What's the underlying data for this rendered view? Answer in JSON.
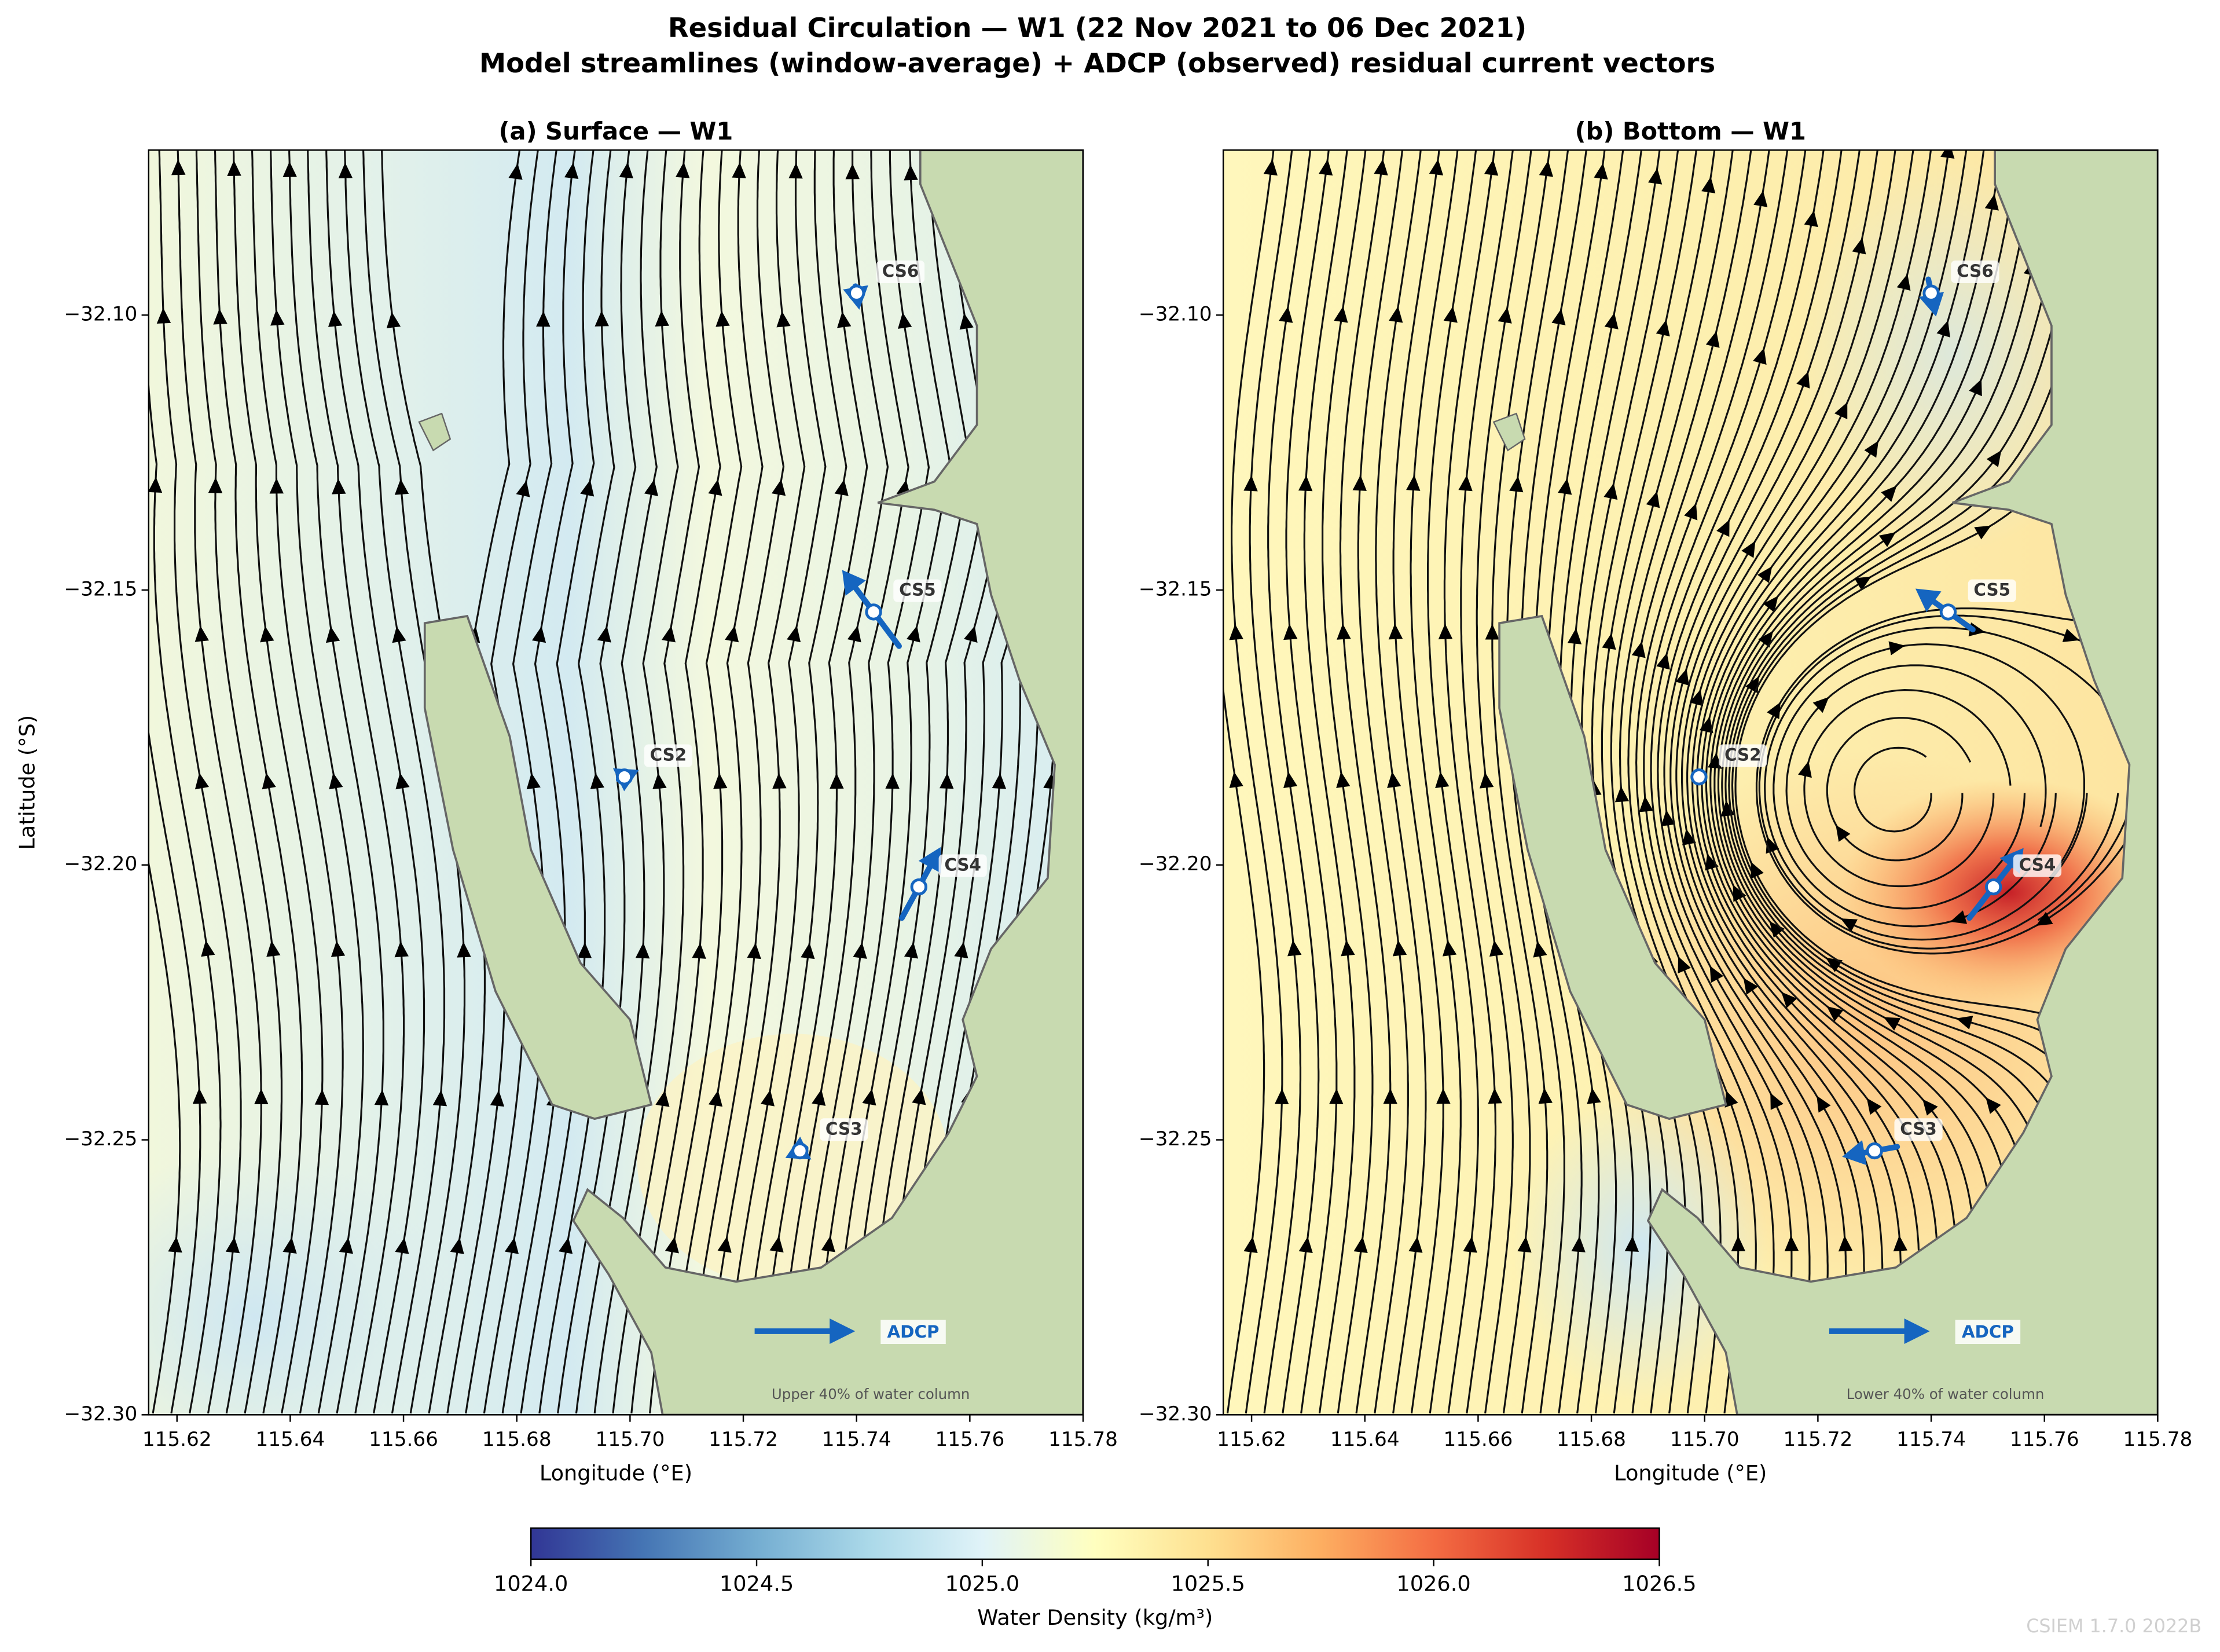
{
  "title": "Residual Circulation — W1  (22 Nov 2021 to 06 Dec 2021)",
  "subtitle": "Model streamlines (window-average) + ADCP (observed) residual current vectors",
  "chart_data": [
    {
      "type": "streamplot",
      "title": "(a) Surface — W1",
      "xlabel": "Longitude (°E)",
      "ylabel": "Latitude (°S)",
      "xlim": [
        115.615,
        115.78
      ],
      "ylim": [
        -32.3,
        -32.07
      ],
      "xticks": [
        115.62,
        115.64,
        115.66,
        115.68,
        {
          "value": 115.7,
          "label": "115.70"
        },
        115.72,
        115.74,
        115.76,
        115.78
      ],
      "yticks": [
        {
          "value": -32.3,
          "label": "−32.30"
        },
        {
          "value": -32.25,
          "label": "−32.25"
        },
        {
          "value": -32.2,
          "label": "−32.20"
        },
        {
          "value": -32.15,
          "label": "−32.15"
        },
        {
          "value": -32.1,
          "label": "−32.10"
        }
      ],
      "stations": [
        {
          "name": "CS6",
          "x": 115.74,
          "y": -32.096,
          "dx": 0.0004,
          "dy": -0.0025
        },
        {
          "name": "CS5",
          "x": 115.743,
          "y": -32.154,
          "dx": -0.009,
          "dy": 0.0124
        },
        {
          "name": "CS2",
          "x": 115.699,
          "y": -32.184,
          "dx": 0.002,
          "dy": 0.001
        },
        {
          "name": "CS4",
          "x": 115.751,
          "y": -32.204,
          "dx": 0.006,
          "dy": 0.0113
        },
        {
          "name": "CS3",
          "x": 115.73,
          "y": -32.252,
          "dx": -0.002,
          "dy": -0.001
        }
      ],
      "reference_label": "ADCP",
      "annotation": "Upper 40% of water column"
    },
    {
      "type": "streamplot",
      "title": "(b) Bottom — W1",
      "xlabel": "Longitude (°E)",
      "xlim": [
        115.615,
        115.78
      ],
      "ylim": [
        -32.3,
        -32.07
      ],
      "xticks": [
        115.62,
        115.64,
        115.66,
        115.68,
        {
          "value": 115.7,
          "label": "115.70"
        },
        115.72,
        115.74,
        115.76,
        115.78
      ],
      "yticks": [
        {
          "value": -32.3,
          "label": "−32.30"
        },
        {
          "value": -32.25,
          "label": "−32.25"
        },
        {
          "value": -32.2,
          "label": "−32.20"
        },
        {
          "value": -32.15,
          "label": "−32.15"
        },
        {
          "value": -32.1,
          "label": "−32.10"
        }
      ],
      "stations": [
        {
          "name": "CS6",
          "x": 115.74,
          "y": -32.096,
          "dx": 0.001,
          "dy": -0.005
        },
        {
          "name": "CS5",
          "x": 115.743,
          "y": -32.154,
          "dx": -0.0087,
          "dy": 0.0064
        },
        {
          "name": "CS2",
          "x": 115.699,
          "y": -32.184,
          "dx": 0,
          "dy": 0
        },
        {
          "name": "CS4",
          "x": 115.751,
          "y": -32.204,
          "dx": 0.0085,
          "dy": 0.0113
        },
        {
          "name": "CS3",
          "x": 115.73,
          "y": -32.252,
          "dx": -0.008,
          "dy": -0.0015
        }
      ],
      "reference_label": "ADCP",
      "annotation": "Lower 40% of water column"
    }
  ],
  "colorbar": {
    "label": "Water Density (kg/m³)",
    "colormap": "RdYlBu_r",
    "lim": [
      1024,
      1026.5
    ],
    "ticks": [
      {
        "value": 1024,
        "label": "1024.0"
      },
      1024.5,
      {
        "value": 1025,
        "label": "1025.0"
      },
      1025.5,
      {
        "value": 1026,
        "label": "1026.0"
      },
      1026.5
    ]
  },
  "watermark": "CSIEM 1.7.0 2022B"
}
